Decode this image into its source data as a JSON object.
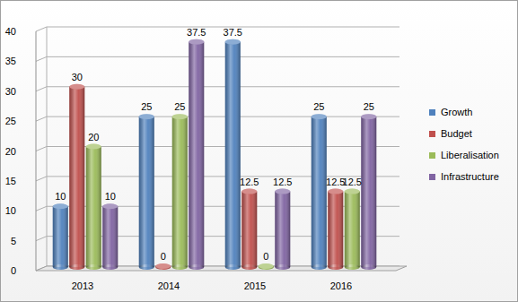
{
  "chart_data": {
    "type": "bar",
    "categories": [
      "2013",
      "2014",
      "2015",
      "2016"
    ],
    "series": [
      {
        "name": "Growth",
        "color": "#4f81bd",
        "values": [
          10,
          25,
          37.5,
          25
        ]
      },
      {
        "name": "Budget",
        "color": "#c0504d",
        "values": [
          30,
          0,
          12.5,
          12.5
        ]
      },
      {
        "name": "Liberalisation",
        "color": "#9bbb59",
        "values": [
          20,
          25,
          0,
          12.5
        ]
      },
      {
        "name": "Infrastructure",
        "color": "#8064a2",
        "values": [
          10,
          37.5,
          12.5,
          25
        ]
      }
    ],
    "ylim": [
      0,
      40
    ],
    "yticks": [
      0,
      5,
      10,
      15,
      20,
      25,
      30,
      35,
      40
    ],
    "grid": true,
    "data_labels": true,
    "legend": "right"
  }
}
